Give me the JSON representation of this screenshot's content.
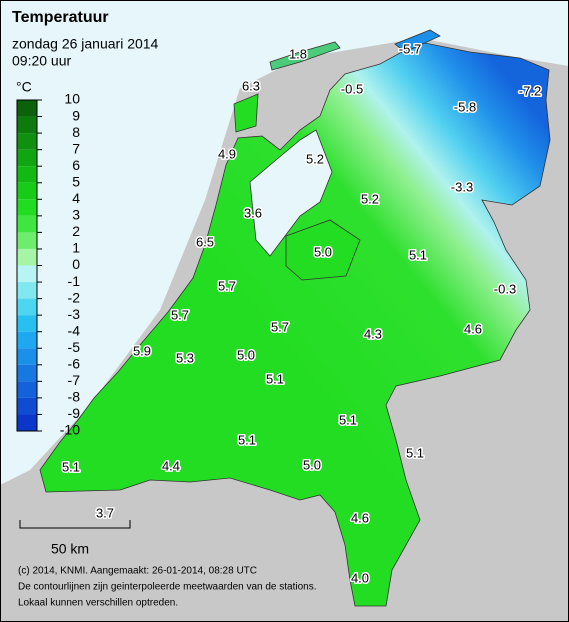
{
  "header": {
    "title": "Temperatuur",
    "date": "zondag 26 januari 2014",
    "time": "09:20 uur"
  },
  "legend": {
    "unit": "°C",
    "labels": [
      "10",
      "9",
      "8",
      "7",
      "6",
      "5",
      "4",
      "3",
      "2",
      "1",
      "0",
      "-1",
      "-2",
      "-3",
      "-4",
      "-5",
      "-6",
      "-7",
      "-8",
      "-9",
      "-10"
    ],
    "colors": [
      "#0b620b",
      "#0d7a0d",
      "#0f900f",
      "#11a511",
      "#13b913",
      "#16cc16",
      "#22dc22",
      "#40e640",
      "#6cee6c",
      "#a6f5a6",
      "#b8f4f4",
      "#82e8f0",
      "#4cd6f0",
      "#28c0f0",
      "#1ea8f0",
      "#1a90ea",
      "#1878e2",
      "#1462da",
      "#104cd2",
      "#0c36ca"
    ]
  },
  "stations": [
    "1.8",
    "-5.7",
    "6.3",
    "-0.5",
    "-7.2",
    "-5.8",
    "4.9",
    "5.2",
    "-3.3",
    "5.2",
    "3.6",
    "6.5",
    "5.0",
    "5.1",
    "5.7",
    "-0.3",
    "5.7",
    "5.7",
    "4.3",
    "4.6",
    "5.9",
    "5.3",
    "5.0",
    "5.1",
    "5.1",
    "5.1",
    "5.1",
    "5.1",
    "4.4",
    "5.0",
    "3.7",
    "4.6",
    "4.0"
  ],
  "scale": {
    "label": "50 km"
  },
  "footer": [
    "(c) 2014, KNMI. Aangemaakt: 26-01-2014, 08:28 UTC",
    "De contourlijnen zijn geinterpoleerde meetwaarden van de stations.",
    "Lokaal kunnen verschillen optreden."
  ]
}
